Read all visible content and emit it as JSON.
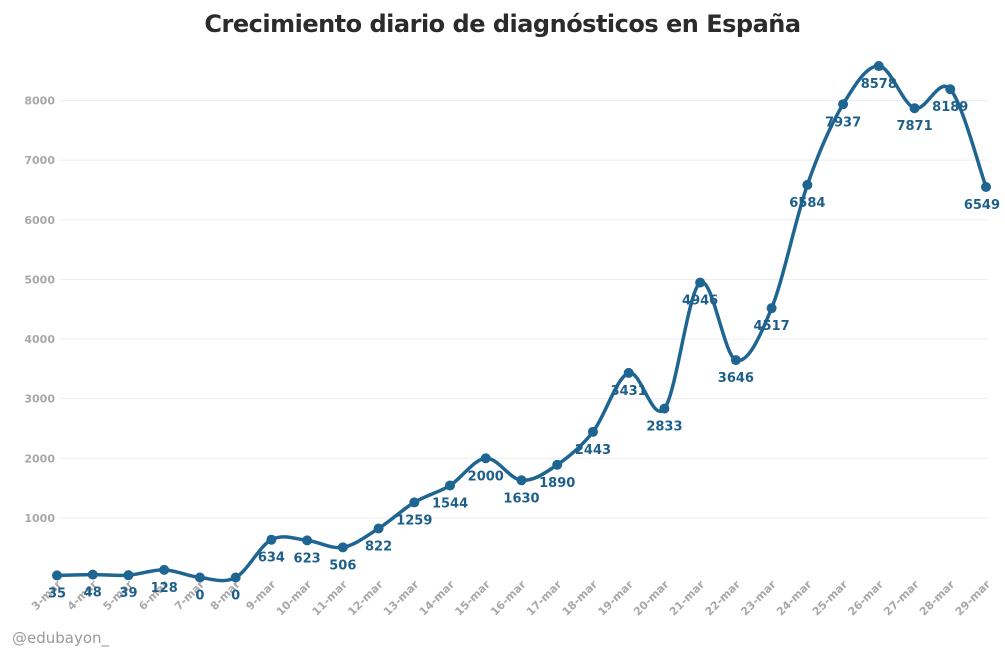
{
  "chart_data": {
    "type": "line",
    "title": "Crecimiento diario de diagnósticos en España",
    "categories": [
      "3-mar",
      "4-mar",
      "5-mar",
      "6-mar",
      "7-mar",
      "8-mar",
      "9-mar",
      "10-mar",
      "11-mar",
      "12-mar",
      "13-mar",
      "14-mar",
      "15-mar",
      "16-mar",
      "17-mar",
      "18-mar",
      "19-mar",
      "20-mar",
      "21-mar",
      "22-mar",
      "23-mar",
      "24-mar",
      "25-mar",
      "26-mar",
      "27-mar",
      "28-mar",
      "29-mar"
    ],
    "series": [
      {
        "values": [
          35,
          48,
          39,
          128,
          0,
          0,
          634,
          623,
          506,
          822,
          1259,
          1544,
          2000,
          1630,
          1890,
          2443,
          3431,
          2833,
          4946,
          3646,
          4517,
          6584,
          7937,
          8578,
          7871,
          8189,
          6549
        ]
      }
    ],
    "yticks": [
      1000,
      2000,
      3000,
      4000,
      5000,
      6000,
      7000,
      8000
    ],
    "ylim": [
      0,
      8800
    ],
    "grid": true,
    "data_labels": true,
    "line_color": "#1e6592",
    "label_color": "#1e5f8a"
  },
  "credit": "@edubayon_"
}
